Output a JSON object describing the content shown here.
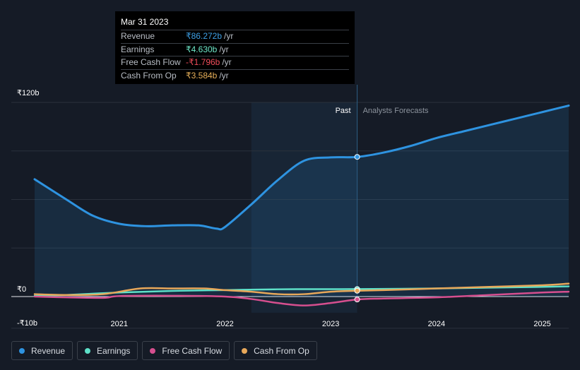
{
  "tooltip": {
    "date": "Mar 31 2023",
    "rows": [
      {
        "label": "Revenue",
        "value": "₹86.272b",
        "unit": "/yr",
        "color": "#3ea0e6"
      },
      {
        "label": "Earnings",
        "value": "₹4.630b",
        "unit": "/yr",
        "color": "#6ee8c8"
      },
      {
        "label": "Free Cash Flow",
        "value": "-₹1.796b",
        "unit": "/yr",
        "color": "#f04d5a"
      },
      {
        "label": "Cash From Op",
        "value": "₹3.584b",
        "unit": "/yr",
        "color": "#e8b05a"
      }
    ]
  },
  "legend": [
    {
      "label": "Revenue",
      "color": "#2e93e0"
    },
    {
      "label": "Earnings",
      "color": "#5ee0c8"
    },
    {
      "label": "Free Cash Flow",
      "color": "#d64f8f"
    },
    {
      "label": "Cash From Op",
      "color": "#e8a85a"
    }
  ],
  "chart_data": {
    "type": "line",
    "y_tick_labels": [
      "₹120b",
      "₹0",
      "-₹10b"
    ],
    "ylim": [
      -10,
      120
    ],
    "xlim": [
      2020.2,
      2025.25
    ],
    "x_ticks": [
      2021,
      2022,
      2023,
      2024,
      2025
    ],
    "x_tick_labels": [
      "2021",
      "2022",
      "2023",
      "2024",
      "2025"
    ],
    "past_label": "Past",
    "forecast_label": "Analysts Forecasts",
    "divider_x": 2023.25,
    "highlight_start_x": 2022.25,
    "grid": true,
    "series": [
      {
        "name": "Revenue",
        "color": "#2e93e0",
        "fill": true,
        "points": [
          [
            2020.2,
            72.5
          ],
          [
            2020.5,
            60
          ],
          [
            2020.75,
            50
          ],
          [
            2021,
            45
          ],
          [
            2021.25,
            43.5
          ],
          [
            2021.5,
            44
          ],
          [
            2021.75,
            44
          ],
          [
            2021.92,
            42
          ],
          [
            2022,
            43
          ],
          [
            2022.25,
            57
          ],
          [
            2022.5,
            72
          ],
          [
            2022.75,
            84
          ],
          [
            2023,
            86
          ],
          [
            2023.25,
            86.3
          ],
          [
            2023.5,
            89
          ],
          [
            2023.75,
            93
          ],
          [
            2024,
            98
          ],
          [
            2024.25,
            102
          ],
          [
            2024.5,
            106
          ],
          [
            2024.75,
            110
          ],
          [
            2025,
            114
          ],
          [
            2025.25,
            118
          ]
        ]
      },
      {
        "name": "Earnings",
        "color": "#5ee0c8",
        "fill": false,
        "points": [
          [
            2020.2,
            0.5
          ],
          [
            2020.5,
            1
          ],
          [
            2021,
            2.5
          ],
          [
            2021.5,
            3.5
          ],
          [
            2022,
            4
          ],
          [
            2022.5,
            4.5
          ],
          [
            2023,
            4.6
          ],
          [
            2023.25,
            4.63
          ],
          [
            2024,
            5
          ],
          [
            2024.5,
            5.5
          ],
          [
            2025,
            6
          ],
          [
            2025.25,
            6.3
          ]
        ]
      },
      {
        "name": "Free Cash Flow",
        "color": "#d64f8f",
        "fill": false,
        "points": [
          [
            2020.2,
            0
          ],
          [
            2020.5,
            -0.5
          ],
          [
            2020.85,
            -0.8
          ],
          [
            2021,
            0.3
          ],
          [
            2021.5,
            0.5
          ],
          [
            2022,
            0
          ],
          [
            2022.25,
            -1.5
          ],
          [
            2022.5,
            -4
          ],
          [
            2022.75,
            -5.5
          ],
          [
            2023,
            -4
          ],
          [
            2023.25,
            -1.8
          ],
          [
            2023.5,
            -1.2
          ],
          [
            2024,
            -0.5
          ],
          [
            2024.5,
            1
          ],
          [
            2025,
            2.5
          ],
          [
            2025.25,
            3
          ]
        ]
      },
      {
        "name": "Cash From Op",
        "color": "#e8a85a",
        "fill": false,
        "points": [
          [
            2020.2,
            1.5
          ],
          [
            2020.5,
            1
          ],
          [
            2020.85,
            1.5
          ],
          [
            2021.2,
            5
          ],
          [
            2021.5,
            5
          ],
          [
            2021.8,
            5
          ],
          [
            2022,
            4
          ],
          [
            2022.25,
            3
          ],
          [
            2022.5,
            1.5
          ],
          [
            2022.75,
            1.5
          ],
          [
            2023,
            3
          ],
          [
            2023.25,
            3.6
          ],
          [
            2023.5,
            4
          ],
          [
            2024,
            5
          ],
          [
            2024.5,
            6
          ],
          [
            2025,
            7
          ],
          [
            2025.25,
            8
          ]
        ]
      }
    ],
    "markers": [
      {
        "series": "Revenue",
        "x": 2023.25,
        "y": 86.3
      },
      {
        "series": "Earnings",
        "x": 2023.25,
        "y": 4.63
      },
      {
        "series": "Cash From Op",
        "x": 2023.25,
        "y": 3.6
      },
      {
        "series": "Free Cash Flow",
        "x": 2023.25,
        "y": -1.8
      }
    ]
  }
}
